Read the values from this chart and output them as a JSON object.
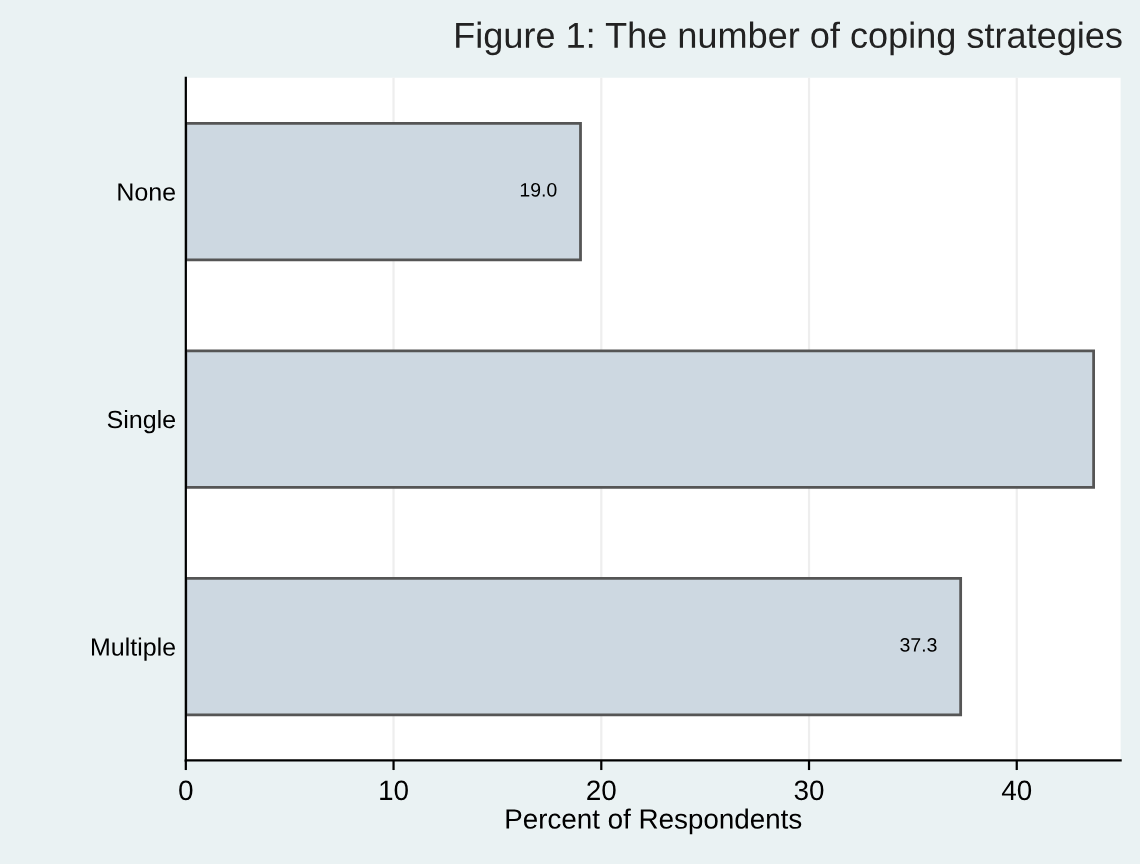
{
  "chart_data": {
    "type": "bar",
    "orientation": "horizontal",
    "title": "Figure 1: The number of coping strategies",
    "xlabel": "Percent of Respondents",
    "categories": [
      "None",
      "Single",
      "Multiple"
    ],
    "values": [
      19.0,
      43.7,
      37.3
    ],
    "value_labels": [
      "19.0",
      null,
      "37.3"
    ],
    "color": "#cdd8e1",
    "xlim": [
      0,
      45
    ],
    "xticks": [
      0,
      10,
      20,
      30,
      40
    ],
    "grid": "x"
  }
}
